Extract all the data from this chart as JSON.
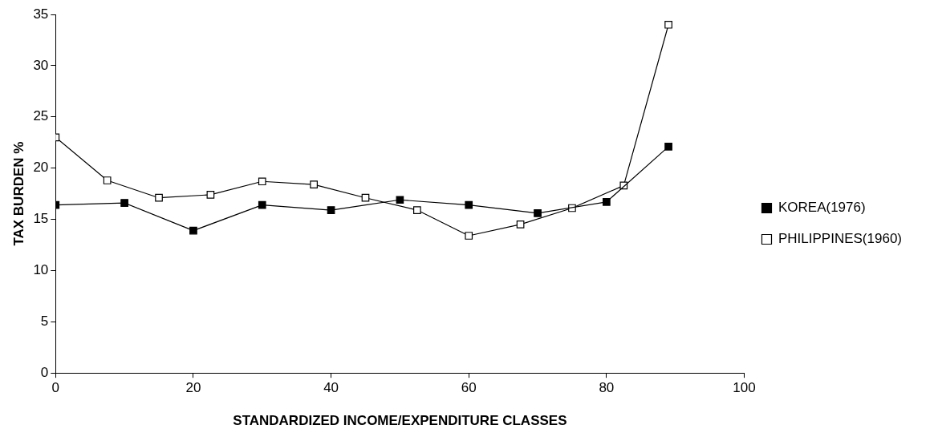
{
  "chart_data": {
    "type": "line",
    "xlabel": "STANDARDIZED INCOME/EXPENDITURE CLASSES",
    "ylabel": "TAX BURDEN %",
    "xlim": [
      0,
      100
    ],
    "xticks": [
      0,
      20,
      40,
      60,
      80,
      100
    ],
    "ylim": [
      0,
      35
    ],
    "yticks": [
      0,
      5,
      10,
      15,
      20,
      25,
      30,
      35
    ],
    "grid": false,
    "legend": "right",
    "marker": "square",
    "line_style": "solid",
    "series": [
      {
        "name": "KOREA(1976)",
        "color": "#000000",
        "x": [
          0,
          10,
          20,
          30,
          40,
          50,
          60,
          70,
          80,
          89
        ],
        "values": [
          16.4,
          16.6,
          13.9,
          16.4,
          15.9,
          16.9,
          16.4,
          15.6,
          16.7,
          22.1
        ]
      },
      {
        "name": "PHILIPPINES(1960)",
        "color": "#000000",
        "x": [
          0,
          7.5,
          15,
          22.5,
          30,
          37.5,
          45,
          52.5,
          60,
          67.5,
          75,
          82.5,
          89
        ],
        "values": [
          23.0,
          18.8,
          17.1,
          17.4,
          18.7,
          18.4,
          17.1,
          15.9,
          13.4,
          14.5,
          16.1,
          18.3,
          34.0
        ]
      }
    ]
  }
}
